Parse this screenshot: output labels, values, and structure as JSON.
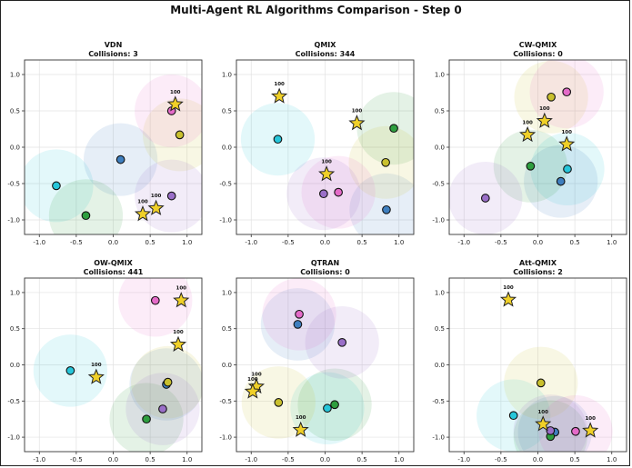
{
  "figure_title": "Multi-Agent RL Algorithms Comparison - Step 0",
  "colors": {
    "cyan": "#26c6da",
    "blue": "#3f7fbf",
    "green": "#2e9e3f",
    "olive": "#c9c02e",
    "pink": "#e46bc8",
    "purple": "#9a6fc8",
    "star": "#f0d028"
  },
  "chart_data": [
    {
      "type": "scatter",
      "title": "VDN",
      "subtitle": "Collisions: 3",
      "xlim": [
        -1.2,
        1.2
      ],
      "ylim": [
        -1.2,
        1.2
      ],
      "xticks": [
        -1.0,
        -0.5,
        0.0,
        0.5,
        1.0
      ],
      "yticks": [
        -1.0,
        -0.5,
        0.0,
        0.5,
        1.0
      ],
      "grid": true,
      "sensing_radius": 0.5,
      "agents": [
        {
          "color": "cyan",
          "x": -0.77,
          "y": -0.53
        },
        {
          "color": "blue",
          "x": 0.1,
          "y": -0.17
        },
        {
          "color": "green",
          "x": -0.37,
          "y": -0.94
        },
        {
          "color": "olive",
          "x": 0.9,
          "y": 0.17
        },
        {
          "color": "pink",
          "x": 0.79,
          "y": 0.5
        },
        {
          "color": "purple",
          "x": 0.79,
          "y": -0.67
        }
      ],
      "targets": [
        {
          "x": 0.84,
          "y": 0.59,
          "label": "100"
        },
        {
          "x": 0.58,
          "y": -0.84,
          "label": "100"
        },
        {
          "x": 0.4,
          "y": -0.92,
          "label": "100"
        }
      ]
    },
    {
      "type": "scatter",
      "title": "QMIX",
      "subtitle": "Collisions: 344",
      "xlim": [
        -1.2,
        1.2
      ],
      "ylim": [
        -1.2,
        1.2
      ],
      "xticks": [
        -1.0,
        -0.5,
        0.0,
        0.5,
        1.0
      ],
      "yticks": [
        -1.0,
        -0.5,
        0.0,
        0.5,
        1.0
      ],
      "grid": true,
      "sensing_radius": 0.5,
      "agents": [
        {
          "color": "cyan",
          "x": -0.64,
          "y": 0.11
        },
        {
          "color": "blue",
          "x": 0.83,
          "y": -0.86
        },
        {
          "color": "green",
          "x": 0.93,
          "y": 0.26
        },
        {
          "color": "olive",
          "x": 0.82,
          "y": -0.21
        },
        {
          "color": "pink",
          "x": 0.18,
          "y": -0.62
        },
        {
          "color": "purple",
          "x": -0.02,
          "y": -0.64
        }
      ],
      "targets": [
        {
          "x": -0.62,
          "y": 0.7,
          "label": "100"
        },
        {
          "x": 0.43,
          "y": 0.33,
          "label": "100"
        },
        {
          "x": 0.02,
          "y": -0.37,
          "label": "100"
        }
      ]
    },
    {
      "type": "scatter",
      "title": "CW-QMIX",
      "subtitle": "Collisions: 0",
      "xlim": [
        -1.2,
        1.2
      ],
      "ylim": [
        -1.2,
        1.2
      ],
      "xticks": [
        -1.0,
        -0.5,
        0.0,
        0.5,
        1.0
      ],
      "yticks": [
        -1.0,
        -0.5,
        0.0,
        0.5,
        1.0
      ],
      "grid": true,
      "sensing_radius": 0.5,
      "agents": [
        {
          "color": "cyan",
          "x": 0.4,
          "y": -0.3
        },
        {
          "color": "blue",
          "x": 0.31,
          "y": -0.47
        },
        {
          "color": "green",
          "x": -0.1,
          "y": -0.26
        },
        {
          "color": "olive",
          "x": 0.18,
          "y": 0.69
        },
        {
          "color": "pink",
          "x": 0.39,
          "y": 0.76
        },
        {
          "color": "purple",
          "x": -0.71,
          "y": -0.7
        }
      ],
      "targets": [
        {
          "x": 0.09,
          "y": 0.36,
          "label": "100"
        },
        {
          "x": -0.14,
          "y": 0.17,
          "label": "100"
        },
        {
          "x": 0.39,
          "y": 0.04,
          "label": "100"
        }
      ]
    },
    {
      "type": "scatter",
      "title": "OW-QMIX",
      "subtitle": "Collisions: 441",
      "xlim": [
        -1.2,
        1.2
      ],
      "ylim": [
        -1.2,
        1.2
      ],
      "xticks": [
        -1.0,
        -0.5,
        0.0,
        0.5,
        1.0
      ],
      "yticks": [
        -1.0,
        -0.5,
        0.0,
        0.5,
        1.0
      ],
      "grid": true,
      "sensing_radius": 0.5,
      "agents": [
        {
          "color": "cyan",
          "x": -0.58,
          "y": -0.08
        },
        {
          "color": "blue",
          "x": 0.72,
          "y": -0.27
        },
        {
          "color": "green",
          "x": 0.45,
          "y": -0.75
        },
        {
          "color": "olive",
          "x": 0.74,
          "y": -0.24
        },
        {
          "color": "pink",
          "x": 0.57,
          "y": 0.89
        },
        {
          "color": "purple",
          "x": 0.67,
          "y": -0.61
        }
      ],
      "targets": [
        {
          "x": 0.92,
          "y": 0.89,
          "label": "100"
        },
        {
          "x": 0.88,
          "y": 0.28,
          "label": "100"
        },
        {
          "x": -0.23,
          "y": -0.17,
          "label": "100"
        }
      ]
    },
    {
      "type": "scatter",
      "title": "QTRAN",
      "subtitle": "Collisions: 0",
      "xlim": [
        -1.2,
        1.2
      ],
      "ylim": [
        -1.2,
        1.2
      ],
      "xticks": [
        -1.0,
        -0.5,
        0.0,
        0.5,
        1.0
      ],
      "yticks": [
        -1.0,
        -0.5,
        0.0,
        0.5,
        1.0
      ],
      "grid": true,
      "sensing_radius": 0.5,
      "agents": [
        {
          "color": "cyan",
          "x": 0.03,
          "y": -0.6
        },
        {
          "color": "blue",
          "x": -0.37,
          "y": 0.56
        },
        {
          "color": "green",
          "x": 0.13,
          "y": -0.55
        },
        {
          "color": "olive",
          "x": -0.63,
          "y": -0.52
        },
        {
          "color": "pink",
          "x": -0.35,
          "y": 0.7
        },
        {
          "color": "purple",
          "x": 0.23,
          "y": 0.31
        }
      ],
      "targets": [
        {
          "x": -0.93,
          "y": -0.3,
          "label": "100"
        },
        {
          "x": -0.98,
          "y": -0.37,
          "label": "100"
        },
        {
          "x": -0.33,
          "y": -0.9,
          "label": "100"
        }
      ]
    },
    {
      "type": "scatter",
      "title": "Att-QMIX",
      "subtitle": "Collisions: 2",
      "xlim": [
        -1.2,
        1.2
      ],
      "ylim": [
        -1.2,
        1.2
      ],
      "xticks": [
        -1.0,
        -0.5,
        0.0,
        0.5,
        1.0
      ],
      "yticks": [
        -1.0,
        -0.5,
        0.0,
        0.5,
        1.0
      ],
      "grid": true,
      "sensing_radius": 0.5,
      "agents": [
        {
          "color": "cyan",
          "x": -0.33,
          "y": -0.7
        },
        {
          "color": "blue",
          "x": 0.23,
          "y": -0.93
        },
        {
          "color": "green",
          "x": 0.17,
          "y": -0.99
        },
        {
          "color": "olive",
          "x": 0.04,
          "y": -0.25
        },
        {
          "color": "pink",
          "x": 0.51,
          "y": -0.92
        },
        {
          "color": "purple",
          "x": 0.17,
          "y": -0.91
        }
      ],
      "targets": [
        {
          "x": -0.4,
          "y": 0.9,
          "label": "100"
        },
        {
          "x": 0.07,
          "y": -0.82,
          "label": "100"
        },
        {
          "x": 0.71,
          "y": -0.91,
          "label": "100"
        }
      ]
    }
  ]
}
